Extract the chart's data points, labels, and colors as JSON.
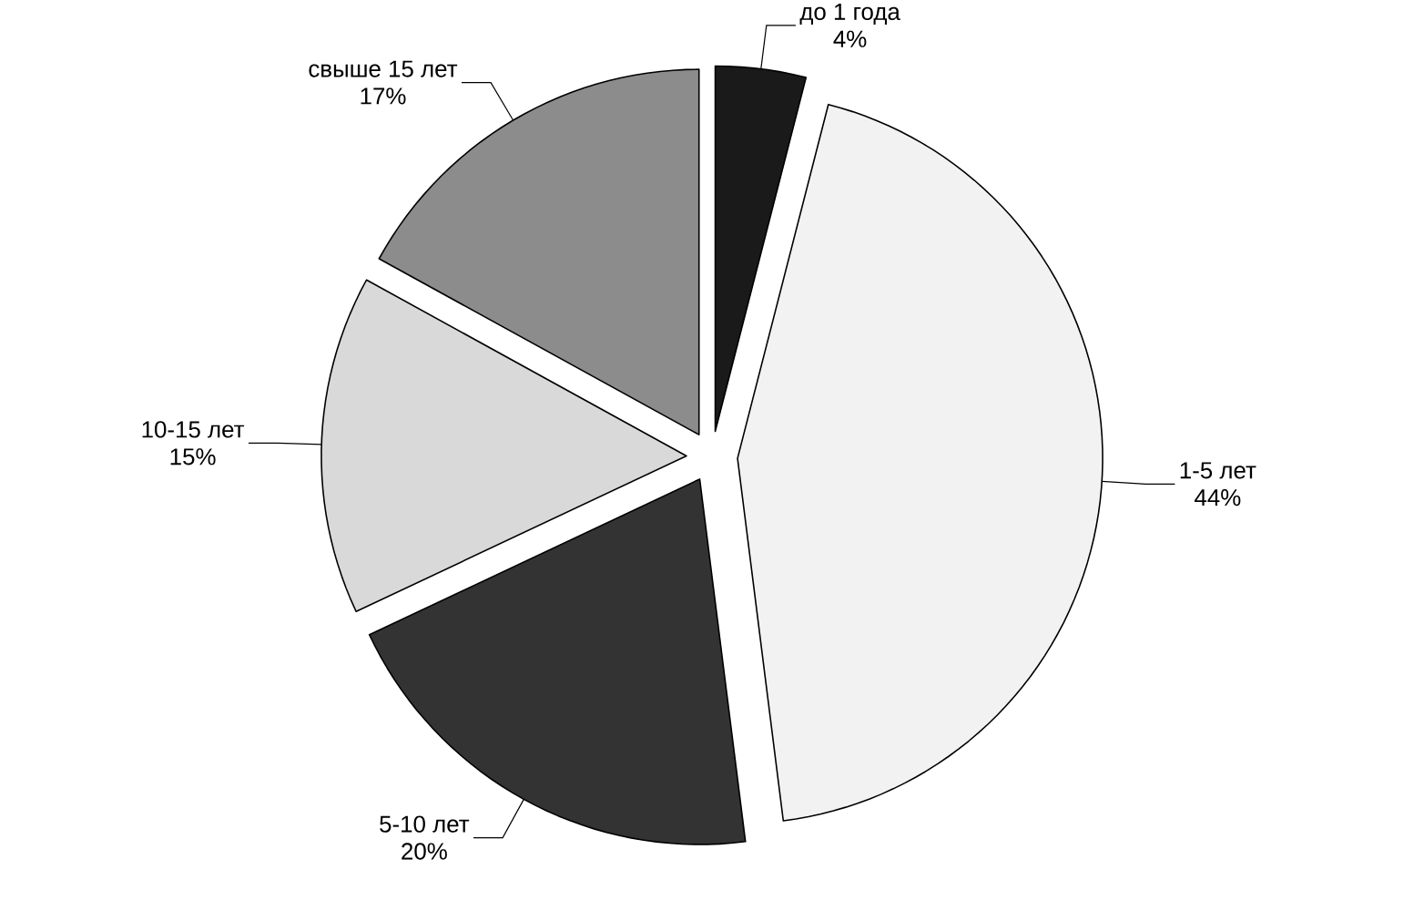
{
  "chart_data": {
    "type": "pie",
    "categories": [
      "до 1 года",
      "1-5 лет",
      "5-10 лет",
      "10-15 лет",
      "свыше 15 лет"
    ],
    "values": [
      4,
      44,
      20,
      15,
      17
    ],
    "value_labels": [
      "4%",
      "44%",
      "20%",
      "15%",
      "17%"
    ],
    "colors": [
      "#1a1a1a",
      "#f2f2f2",
      "#333333",
      "#d9d9d9",
      "#8c8c8c"
    ]
  }
}
